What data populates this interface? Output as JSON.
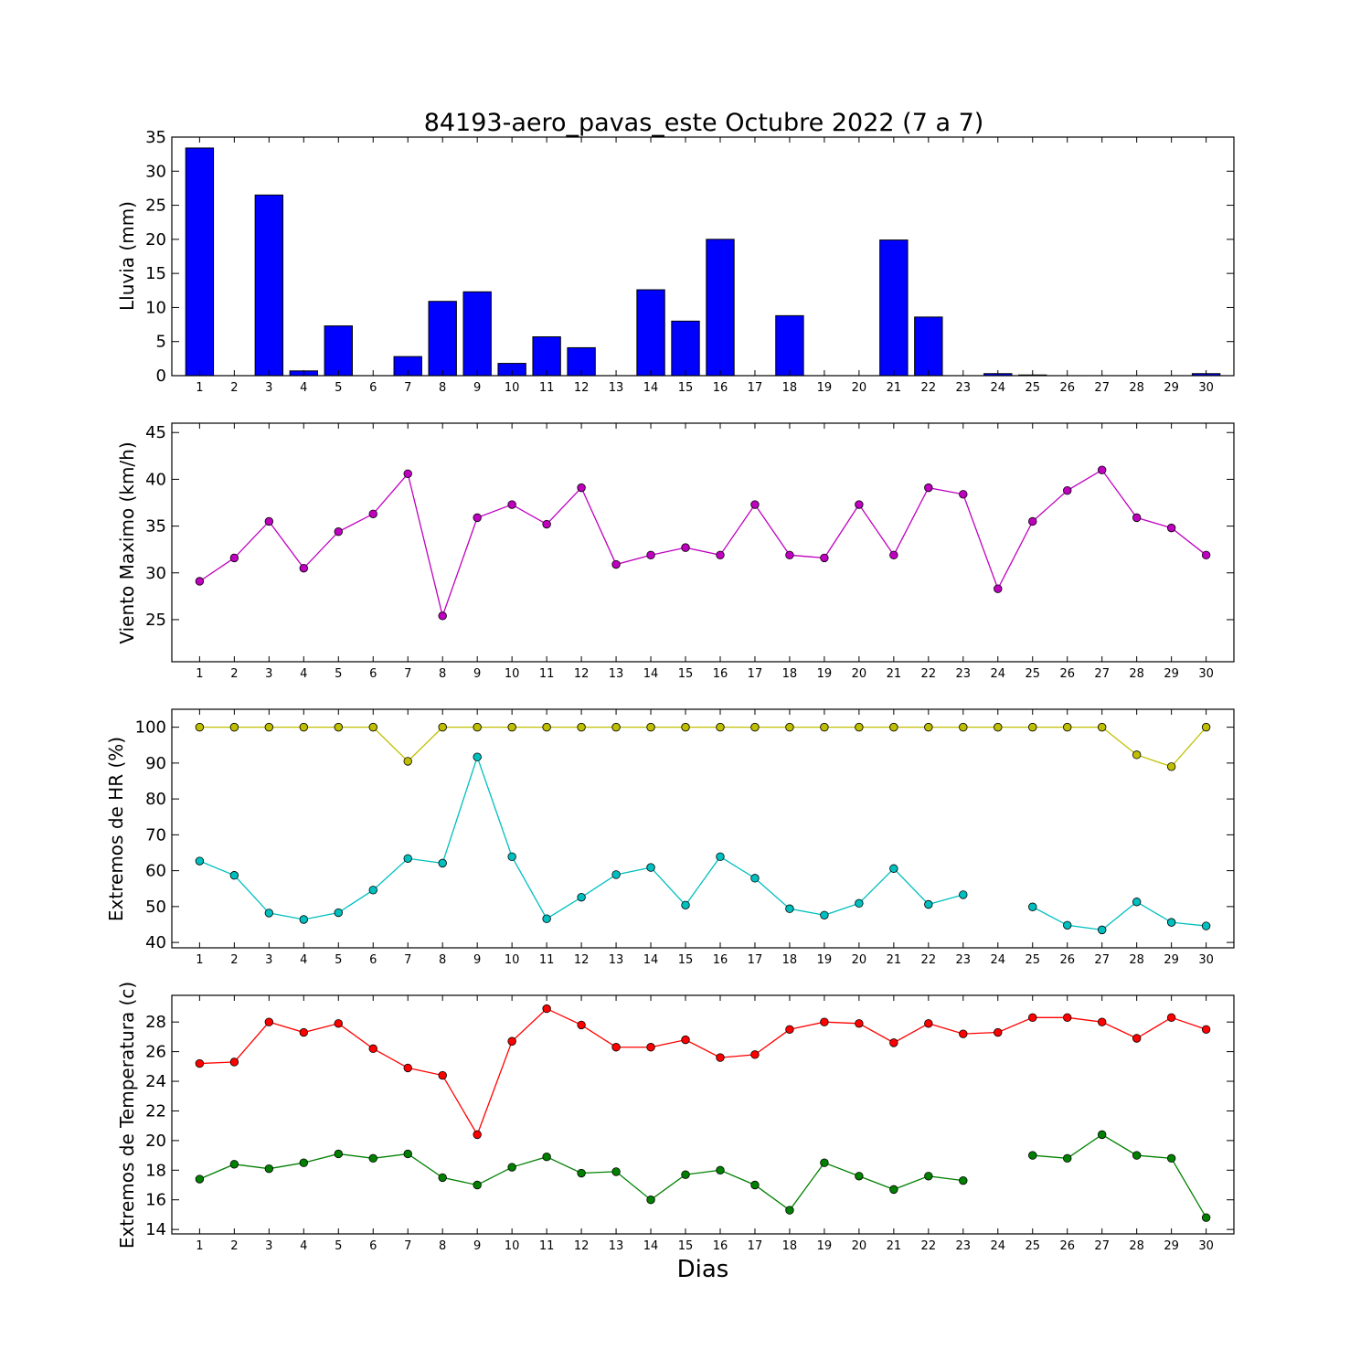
{
  "chart_data": [
    {
      "type": "bar",
      "title": "84193-aero_pavas_este Octubre 2022  (7 a 7)",
      "ylabel": "Lluvia (mm)",
      "xlabel": "",
      "categories": [
        "1",
        "2",
        "3",
        "4",
        "5",
        "6",
        "7",
        "8",
        "9",
        "10",
        "11",
        "12",
        "13",
        "14",
        "15",
        "16",
        "17",
        "18",
        "19",
        "20",
        "21",
        "22",
        "23",
        "24",
        "25",
        "26",
        "27",
        "28",
        "29",
        "30"
      ],
      "ylim": [
        0,
        35
      ],
      "yticks": [
        0,
        5,
        10,
        15,
        20,
        25,
        30,
        35
      ],
      "series": [
        {
          "color": "#0000ff",
          "values": [
            33.4,
            0,
            26.5,
            0.7,
            7.3,
            0,
            2.8,
            10.9,
            12.3,
            1.8,
            5.7,
            4.1,
            0,
            12.6,
            8.0,
            20.0,
            0,
            8.8,
            0,
            0,
            19.9,
            8.6,
            0,
            0.3,
            0.1,
            0,
            0,
            0,
            0,
            0.3
          ]
        }
      ]
    },
    {
      "type": "line",
      "ylabel": "Viento Maximo (km/h)",
      "categories": [
        "1",
        "2",
        "3",
        "4",
        "5",
        "6",
        "7",
        "8",
        "9",
        "10",
        "11",
        "12",
        "13",
        "14",
        "15",
        "16",
        "17",
        "18",
        "19",
        "20",
        "21",
        "22",
        "23",
        "24",
        "25",
        "26",
        "27",
        "28",
        "29",
        "30"
      ],
      "ylim": [
        20.5,
        46
      ],
      "yticks": [
        25,
        30,
        35,
        40,
        45
      ],
      "series": [
        {
          "color": "#bf00bf",
          "values": [
            29.1,
            31.6,
            35.5,
            30.5,
            34.4,
            36.3,
            40.6,
            25.4,
            35.9,
            37.3,
            35.2,
            39.1,
            30.9,
            31.9,
            32.7,
            31.9,
            37.3,
            31.9,
            31.6,
            37.3,
            31.9,
            39.1,
            38.4,
            28.3,
            35.5,
            38.8,
            41.0,
            35.9,
            34.8,
            31.9
          ]
        }
      ]
    },
    {
      "type": "line",
      "ylabel": "Extremos de HR (%)",
      "categories": [
        "1",
        "2",
        "3",
        "4",
        "5",
        "6",
        "7",
        "8",
        "9",
        "10",
        "11",
        "12",
        "13",
        "14",
        "15",
        "16",
        "17",
        "18",
        "19",
        "20",
        "21",
        "22",
        "23",
        "24",
        "25",
        "26",
        "27",
        "28",
        "29",
        "30"
      ],
      "ylim": [
        38.5,
        105
      ],
      "yticks": [
        40,
        50,
        60,
        70,
        80,
        90,
        100
      ],
      "series": [
        {
          "color": "#bfbf00",
          "values": [
            100,
            100,
            100,
            100,
            100,
            100,
            90.5,
            100,
            100,
            100,
            100,
            100,
            100,
            100,
            100,
            100,
            100,
            100,
            100,
            100,
            100,
            100,
            100,
            100,
            100,
            100,
            100,
            92.3,
            89.0,
            100
          ]
        },
        {
          "color": "#00bfbf",
          "values": [
            62.7,
            58.7,
            48.2,
            46.4,
            48.3,
            54.6,
            63.4,
            62.1,
            91.7,
            63.9,
            46.6,
            52.6,
            58.9,
            60.9,
            50.4,
            63.9,
            57.9,
            49.4,
            47.6,
            50.9,
            60.6,
            50.6,
            53.3,
            null,
            49.9,
            44.8,
            43.5,
            51.3,
            45.6,
            44.6
          ]
        }
      ]
    },
    {
      "type": "line",
      "ylabel": "Extremos de Temperatura (c)",
      "xlabel": "Dias",
      "categories": [
        "1",
        "2",
        "3",
        "4",
        "5",
        "6",
        "7",
        "8",
        "9",
        "10",
        "11",
        "12",
        "13",
        "14",
        "15",
        "16",
        "17",
        "18",
        "19",
        "20",
        "21",
        "22",
        "23",
        "24",
        "25",
        "26",
        "27",
        "28",
        "29",
        "30"
      ],
      "ylim": [
        13.7,
        29.8
      ],
      "yticks": [
        14,
        16,
        18,
        20,
        22,
        24,
        26,
        28
      ],
      "series": [
        {
          "color": "#ff0000",
          "values": [
            25.2,
            25.3,
            28.0,
            27.3,
            27.9,
            26.2,
            24.9,
            24.4,
            20.4,
            26.7,
            28.9,
            27.8,
            26.3,
            26.3,
            26.8,
            25.6,
            25.8,
            27.5,
            28.0,
            27.9,
            26.6,
            27.9,
            27.2,
            27.3,
            28.3,
            28.3,
            28.0,
            26.9,
            28.3,
            27.5
          ]
        },
        {
          "color": "#008000",
          "values": [
            17.4,
            18.4,
            18.1,
            18.5,
            19.1,
            18.8,
            19.1,
            17.5,
            17.0,
            18.2,
            18.9,
            17.8,
            17.9,
            16.0,
            17.7,
            18.0,
            17.0,
            15.3,
            18.5,
            17.6,
            16.7,
            17.6,
            17.3,
            null,
            19.0,
            18.8,
            20.4,
            19.0,
            18.8,
            14.8
          ]
        }
      ]
    }
  ]
}
